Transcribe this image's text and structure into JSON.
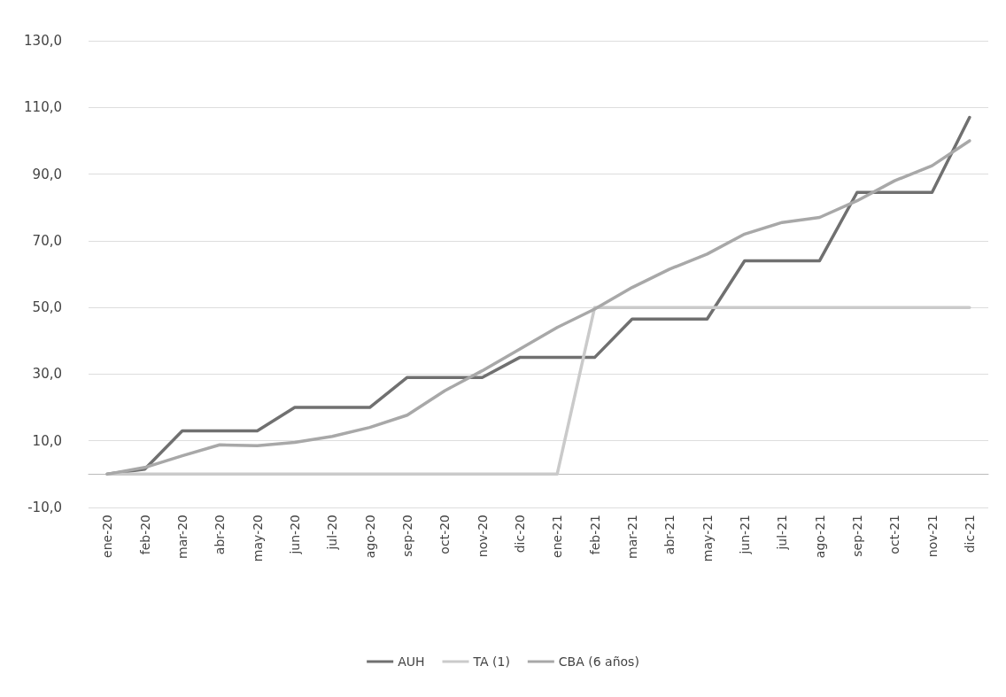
{
  "chart_data": {
    "type": "line",
    "categories": [
      "ene-20",
      "feb-20",
      "mar-20",
      "abr-20",
      "may-20",
      "jun-20",
      "jul-20",
      "ago-20",
      "sep-20",
      "oct-20",
      "nov-20",
      "dic-20",
      "ene-21",
      "feb-21",
      "mar-21",
      "abr-21",
      "may-21",
      "jun-21",
      "jul-21",
      "ago-21",
      "sep-21",
      "oct-21",
      "nov-21",
      "dic-21"
    ],
    "series": [
      {
        "name": "AUH",
        "color": "#707070",
        "values": [
          0,
          1.5,
          13,
          13,
          13,
          20,
          20,
          20,
          29,
          29,
          29,
          35,
          35,
          35,
          46.5,
          46.5,
          46.5,
          64,
          64,
          64,
          84.5,
          84.5,
          84.5,
          107
        ]
      },
      {
        "name": "TA (1)",
        "color": "#cacaca",
        "values": [
          0,
          0,
          0,
          0,
          0,
          0,
          0,
          0,
          0,
          0,
          0,
          0,
          0,
          50,
          50,
          50,
          50,
          50,
          50,
          50,
          50,
          50,
          50,
          50
        ]
      },
      {
        "name": "CBA (6 años)",
        "color": "#a8a8a8",
        "values": [
          0,
          2,
          5.5,
          8.8,
          8.5,
          9.5,
          11.3,
          14,
          17.7,
          25,
          31,
          37.5,
          44,
          49.5,
          56,
          61.5,
          66,
          72,
          75.5,
          77,
          82,
          88,
          92.5,
          100
        ]
      }
    ],
    "ylim": [
      -10,
      130
    ],
    "yticks": [
      {
        "value": -10,
        "label": "-10,0"
      },
      {
        "value": 10,
        "label": "10,0"
      },
      {
        "value": 30,
        "label": "30,0"
      },
      {
        "value": 50,
        "label": "50,0"
      },
      {
        "value": 70,
        "label": "70,0"
      },
      {
        "value": 90,
        "label": "90,0"
      },
      {
        "value": 110,
        "label": "110,0"
      },
      {
        "value": 130,
        "label": "130,0"
      }
    ],
    "grid": "y",
    "legend": "bottom",
    "marker": "none",
    "line_style": "solid"
  }
}
